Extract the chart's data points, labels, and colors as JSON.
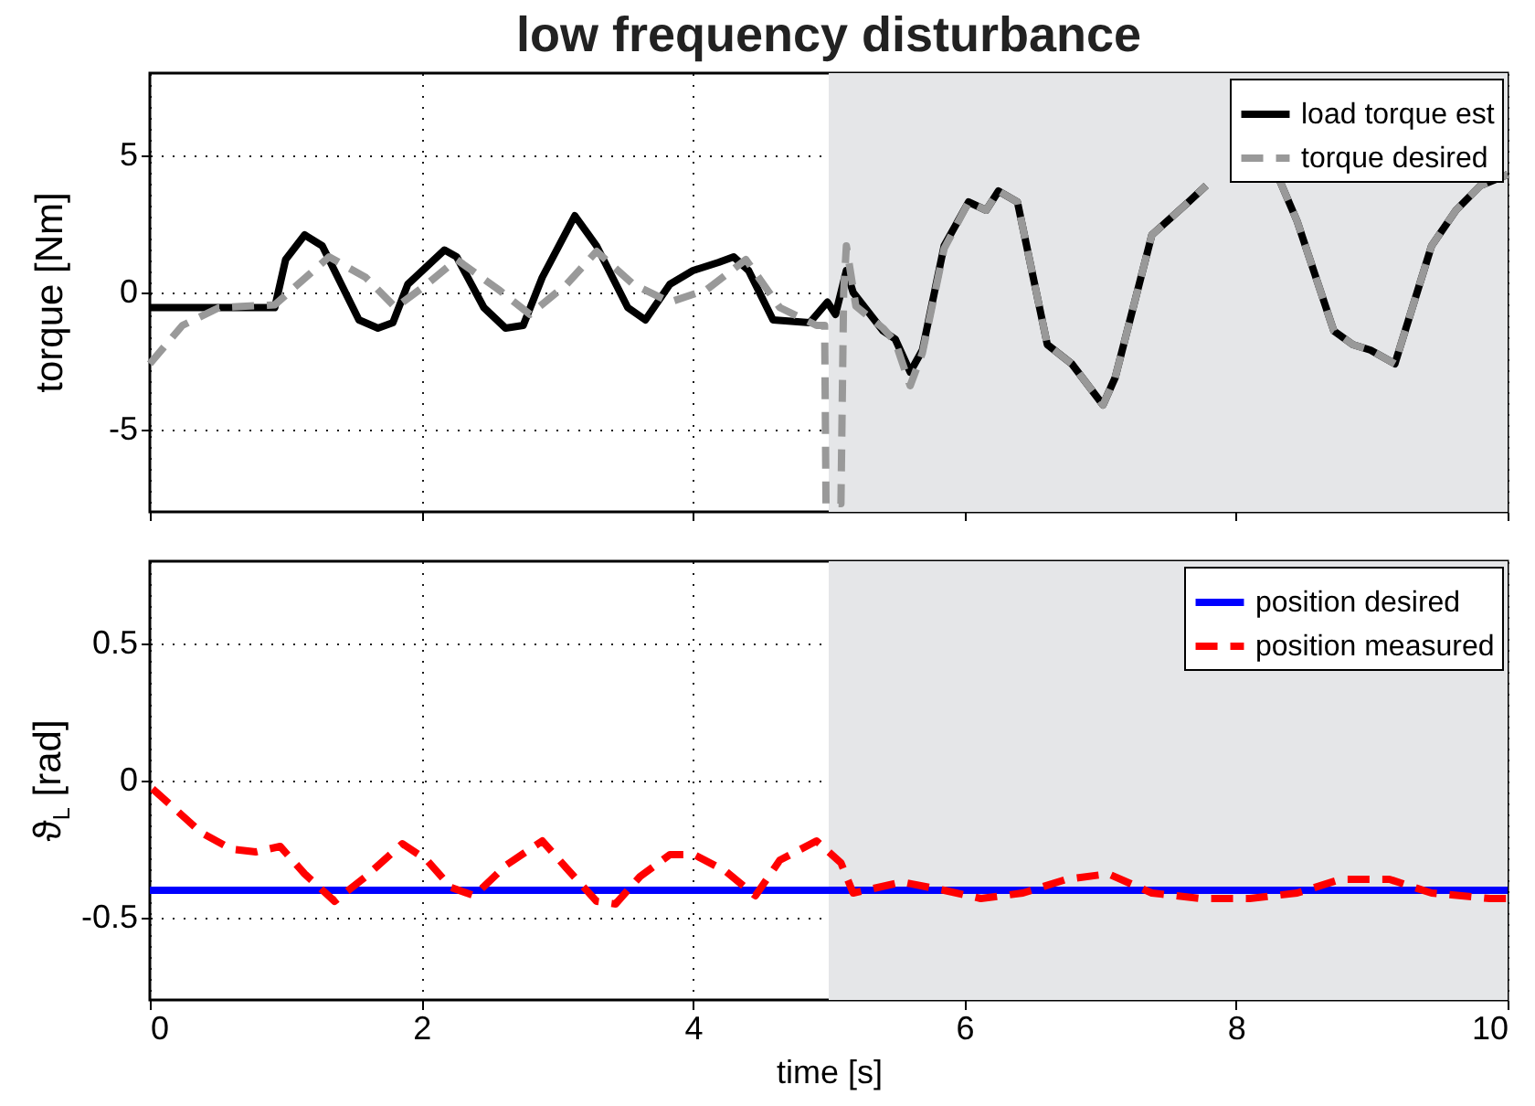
{
  "chart_data": [
    {
      "type": "line",
      "title": "low frequency disturbance",
      "ylabel": "torque [Nm]",
      "xlim": [
        0,
        10
      ],
      "xticks": [
        0,
        2,
        4,
        6,
        8,
        10
      ],
      "ylim": [
        -8,
        8
      ],
      "yticks": [
        -5,
        0,
        5
      ],
      "grid": true,
      "legend": "top right",
      "tick_labels": "y",
      "bands": [
        {
          "axis": "x",
          "from": 5,
          "to": 10,
          "color": "#e5e6e8"
        }
      ],
      "series": [
        {
          "name": "load torque est",
          "color": "#000000",
          "line_style": "solid",
          "x": [
            0,
            0.92,
            1.0,
            1.14,
            1.27,
            1.54,
            1.68,
            1.79,
            1.9,
            2.17,
            2.26,
            2.46,
            2.62,
            2.75,
            2.89,
            3.13,
            3.29,
            3.52,
            3.65,
            3.83,
            4.0,
            4.19,
            4.3,
            4.41,
            4.59,
            4.86,
            4.99,
            5.05,
            5.13,
            5.18,
            5.4,
            5.49,
            5.6,
            5.69,
            5.85,
            6.03,
            6.16,
            6.25,
            6.39,
            6.61,
            6.79,
            7.02,
            7.11,
            7.38,
            7.65,
            7.78,
            8.0,
            8.32,
            8.45,
            8.72,
            8.86,
            8.99,
            9.17,
            9.44,
            9.62,
            9.8,
            10.0
          ],
          "values": [
            -0.55,
            -0.55,
            1.2,
            2.1,
            1.7,
            -1.0,
            -1.3,
            -1.1,
            0.3,
            1.55,
            1.3,
            -0.55,
            -1.3,
            -1.2,
            0.55,
            2.8,
            1.7,
            -0.55,
            -1.0,
            0.3,
            0.8,
            1.1,
            1.3,
            0.8,
            -1.0,
            -1.1,
            -0.35,
            -0.8,
            0.8,
            0,
            -1.4,
            -1.7,
            -2.9,
            -2.1,
            1.7,
            3.3,
            3.0,
            3.7,
            3.3,
            -1.9,
            -2.6,
            -4.1,
            -3.1,
            2.1,
            3.3,
            3.9,
            null,
            4.1,
            2.6,
            -1.4,
            -1.9,
            -2.1,
            -2.6,
            1.7,
            3.0,
            3.9,
            4.3
          ]
        },
        {
          "name": "torque desired",
          "color": "#999999",
          "line_style": "dashed",
          "x": [
            0,
            0.24,
            0.51,
            0.92,
            1.32,
            1.59,
            1.81,
            2.04,
            2.26,
            2.57,
            2.8,
            3.07,
            3.29,
            3.56,
            3.83,
            4.1,
            4.39,
            4.64,
            4.91,
            4.97,
            4.98,
            5.09,
            5.11,
            5.13,
            5.2,
            5.4,
            5.49,
            5.6,
            5.69,
            5.85,
            6.03,
            6.16,
            6.25,
            6.39,
            6.61,
            6.79,
            7.02,
            7.11,
            7.38,
            7.65,
            7.78,
            8.0,
            8.32,
            8.45,
            8.72,
            8.86,
            8.99,
            9.17,
            9.44,
            9.62,
            9.8,
            10.0
          ],
          "values": [
            -2.6,
            -1.2,
            -0.55,
            -0.45,
            1.3,
            0.55,
            -0.55,
            0.3,
            1.2,
            0.1,
            -0.8,
            0.3,
            1.5,
            0.3,
            -0.35,
            0.1,
            1.2,
            -0.55,
            -1.2,
            -1.2,
            -7.7,
            -7.7,
            0,
            1.7,
            -0.5,
            -1.3,
            -1.8,
            -3.4,
            -2.2,
            1.6,
            3.3,
            3.0,
            3.7,
            3.3,
            -1.9,
            -2.6,
            -4.1,
            -3.1,
            2.1,
            3.3,
            3.9,
            null,
            4.1,
            2.6,
            -1.4,
            -1.9,
            -2.1,
            -2.6,
            1.7,
            3.0,
            3.9,
            4.3
          ]
        }
      ]
    },
    {
      "type": "line",
      "xlabel": "time [s]",
      "ylabel": "ϑ$_{L}$ [rad]",
      "xlim": [
        0,
        10
      ],
      "xticks": [
        0,
        2,
        4,
        6,
        8,
        10
      ],
      "ylim": [
        -0.8,
        0.8
      ],
      "yticks": [
        -0.5,
        0,
        0.5
      ],
      "grid": true,
      "legend": "top right",
      "bands": [
        {
          "axis": "x",
          "from": 5,
          "to": 10,
          "color": "#e5e6e8"
        }
      ],
      "series": [
        {
          "name": "position desired",
          "color": "#0000ff",
          "line_style": "solid",
          "x": [
            0,
            10
          ],
          "values": [
            -0.4,
            -0.4
          ]
        },
        {
          "name": "position measured",
          "color": "#ff0000",
          "line_style": "dashed",
          "x": [
            0.02,
            0.38,
            0.6,
            0.78,
            0.96,
            1.14,
            1.36,
            1.59,
            1.86,
            2.04,
            2.22,
            2.39,
            2.62,
            2.89,
            3.07,
            3.29,
            3.43,
            3.61,
            3.83,
            4.01,
            4.24,
            4.46,
            4.64,
            4.91,
            5.09,
            5.18,
            5.54,
            5.85,
            6.12,
            6.43,
            6.75,
            7.06,
            7.38,
            7.74,
            8.1,
            8.45,
            8.77,
            9.13,
            9.44,
            9.87,
            10.0
          ],
          "values": [
            -0.03,
            -0.19,
            -0.25,
            -0.26,
            -0.24,
            -0.34,
            -0.44,
            -0.35,
            -0.23,
            -0.29,
            -0.39,
            -0.42,
            -0.31,
            -0.22,
            -0.32,
            -0.44,
            -0.45,
            -0.35,
            -0.27,
            -0.27,
            -0.33,
            -0.42,
            -0.29,
            -0.22,
            -0.3,
            -0.41,
            -0.37,
            -0.4,
            -0.43,
            -0.41,
            -0.36,
            -0.34,
            -0.41,
            -0.43,
            -0.43,
            -0.41,
            -0.36,
            -0.36,
            -0.41,
            -0.43,
            -0.43
          ]
        }
      ]
    }
  ]
}
